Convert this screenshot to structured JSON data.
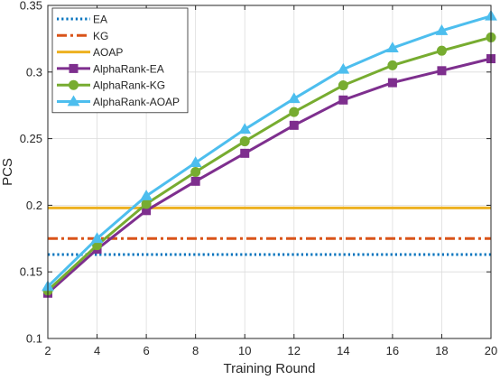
{
  "chart_data": {
    "type": "line",
    "xlabel": "Training Round",
    "ylabel": "PCS",
    "xlim": [
      2,
      20
    ],
    "ylim": [
      0.1,
      0.35
    ],
    "xticks": [
      "2",
      "4",
      "6",
      "8",
      "10",
      "12",
      "14",
      "16",
      "18",
      "20"
    ],
    "yticks": [
      "0.1",
      "0.15",
      "0.2",
      "0.25",
      "0.3",
      "0.35"
    ],
    "grid": true,
    "legend_position": "top-left",
    "x": [
      2,
      4,
      6,
      8,
      10,
      12,
      14,
      16,
      18,
      20
    ],
    "series": [
      {
        "name": "EA",
        "style": "dotted",
        "color": "#0072BD",
        "values": [
          0.163,
          0.163,
          0.163,
          0.163,
          0.163,
          0.163,
          0.163,
          0.163,
          0.163,
          0.163
        ]
      },
      {
        "name": "KG",
        "style": "dashdot",
        "color": "#D95319",
        "values": [
          0.175,
          0.175,
          0.175,
          0.175,
          0.175,
          0.175,
          0.175,
          0.175,
          0.175,
          0.175
        ]
      },
      {
        "name": "AOAP",
        "style": "solid",
        "color": "#EDB120",
        "values": [
          0.198,
          0.198,
          0.198,
          0.198,
          0.198,
          0.198,
          0.198,
          0.198,
          0.198,
          0.198
        ]
      },
      {
        "name": "AlphaRank-EA",
        "style": "solid",
        "marker": "square",
        "color": "#7E2F8E",
        "values": [
          0.134,
          0.167,
          0.196,
          0.218,
          0.239,
          0.26,
          0.279,
          0.292,
          0.301,
          0.31
        ]
      },
      {
        "name": "AlphaRank-KG",
        "style": "solid",
        "marker": "circle",
        "color": "#77AC30",
        "values": [
          0.136,
          0.17,
          0.201,
          0.225,
          0.248,
          0.27,
          0.29,
          0.305,
          0.316,
          0.326
        ]
      },
      {
        "name": "AlphaRank-AOAP",
        "style": "solid",
        "marker": "triangle",
        "color": "#4DBEEE",
        "values": [
          0.139,
          0.175,
          0.207,
          0.232,
          0.257,
          0.28,
          0.302,
          0.318,
          0.331,
          0.342
        ]
      }
    ]
  }
}
